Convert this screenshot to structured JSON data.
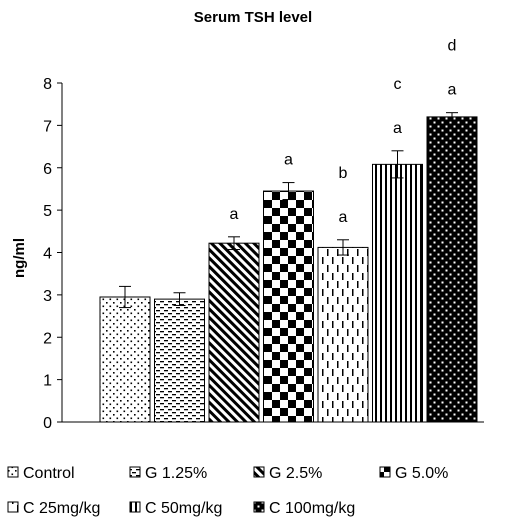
{
  "chart_data": {
    "type": "bar",
    "title": "Serum TSH level",
    "xlabel": "",
    "ylabel": "ng/ml",
    "ylim": [
      0,
      8
    ],
    "yticks": [
      0,
      1,
      2,
      3,
      4,
      5,
      6,
      7,
      8
    ],
    "grid": false,
    "legend_position": "bottom",
    "categories": [
      "Control",
      "G 1.25%",
      "G 2.5%",
      "G 5.0%",
      "C 25mg/kg",
      "C 50mg/kg",
      "C 100mg/kg"
    ],
    "values": [
      2.95,
      2.9,
      4.22,
      5.45,
      4.12,
      6.08,
      7.2
    ],
    "errors": [
      0.25,
      0.15,
      0.15,
      0.2,
      0.18,
      0.32,
      0.1
    ],
    "annotations": [
      [],
      [],
      [
        "a"
      ],
      [
        "a"
      ],
      [
        "b",
        "a"
      ],
      [
        "c",
        "a"
      ],
      [
        "d",
        "a"
      ]
    ],
    "patterns": [
      "sparse-dots",
      "dashes",
      "diagonal-stripes",
      "checker",
      "vertical-dashes",
      "vertical-lines",
      "dense-dots"
    ]
  }
}
